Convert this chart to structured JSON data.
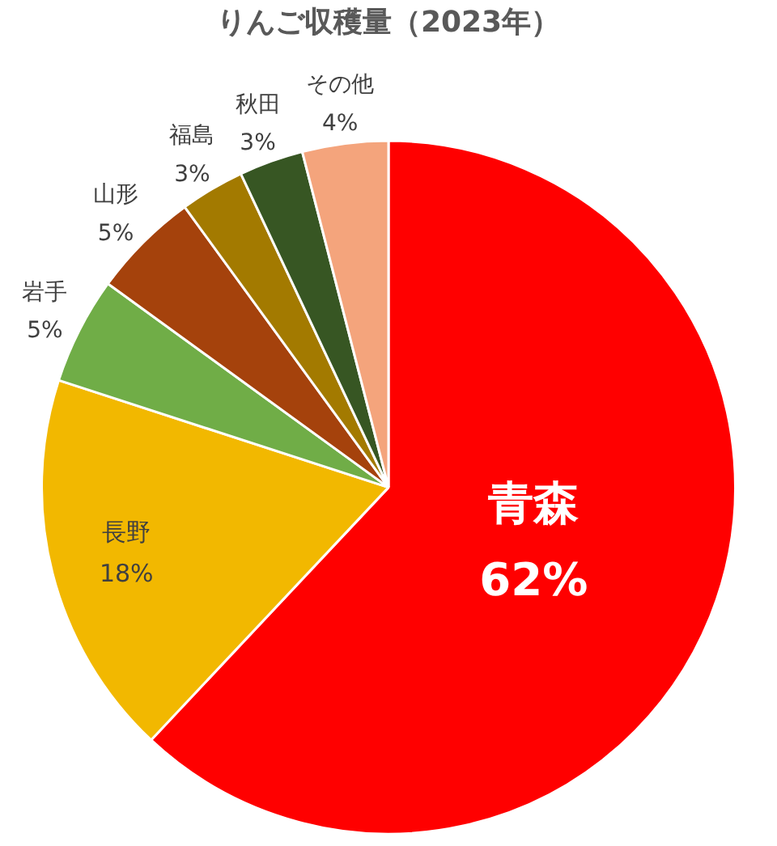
{
  "chart_data": {
    "type": "pie",
    "title": "りんご収穫量（2023年）",
    "categories": [
      "青森",
      "長野",
      "岩手",
      "山形",
      "福島",
      "秋田",
      "その他"
    ],
    "values": [
      62,
      18,
      5,
      5,
      3,
      3,
      4
    ],
    "value_labels": [
      "62%",
      "18%",
      "5%",
      "5%",
      "3%",
      "3%",
      "4%"
    ],
    "colors": [
      "#ff0000",
      "#f2b800",
      "#70ad47",
      "#a5420c",
      "#a37a00",
      "#375623",
      "#f4a47c"
    ],
    "legend": false
  }
}
